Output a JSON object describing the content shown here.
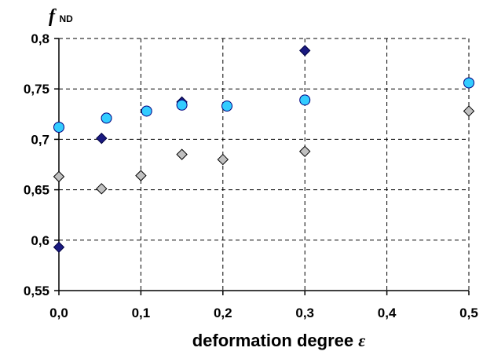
{
  "chart_data": {
    "type": "scatter",
    "title": "",
    "xlabel": {
      "text": "deformation degree ",
      "symbol": "ε"
    },
    "ylabel": {
      "text": "f",
      "subscript": "ND"
    },
    "xlim": [
      0,
      0.5
    ],
    "ylim": [
      0.55,
      0.8
    ],
    "x_ticks": [
      0,
      0.1,
      0.2,
      0.3,
      0.4,
      0.5
    ],
    "x_tick_labels": [
      "0,0",
      "0,1",
      "0,2",
      "0,3",
      "0,4",
      "0,5"
    ],
    "y_ticks": [
      0.55,
      0.6,
      0.65,
      0.7,
      0.75,
      0.8
    ],
    "y_tick_labels": [
      "0,55",
      "0,6",
      "0,65",
      "0,7",
      "0,75",
      "0,8"
    ],
    "grid": "dashed",
    "legend": "none",
    "series": [
      {
        "marker": "diamond",
        "color": "#1a1a80",
        "edge": "#000040",
        "points": [
          {
            "x": 0.0,
            "y": 0.593
          },
          {
            "x": 0.052,
            "y": 0.701
          },
          {
            "x": 0.15,
            "y": 0.737
          },
          {
            "x": 0.3,
            "y": 0.788
          }
        ]
      },
      {
        "marker": "circle",
        "color": "#33ccff",
        "edge": "#000080",
        "points": [
          {
            "x": 0.0,
            "y": 0.712
          },
          {
            "x": 0.058,
            "y": 0.721
          },
          {
            "x": 0.107,
            "y": 0.728
          },
          {
            "x": 0.15,
            "y": 0.734
          },
          {
            "x": 0.205,
            "y": 0.733
          },
          {
            "x": 0.3,
            "y": 0.739
          },
          {
            "x": 0.5,
            "y": 0.756
          }
        ]
      },
      {
        "marker": "diamond",
        "color": "#c0c0c0",
        "edge": "#000000",
        "points": [
          {
            "x": 0.0,
            "y": 0.663
          },
          {
            "x": 0.052,
            "y": 0.651
          },
          {
            "x": 0.1,
            "y": 0.664
          },
          {
            "x": 0.15,
            "y": 0.685
          },
          {
            "x": 0.2,
            "y": 0.68
          },
          {
            "x": 0.3,
            "y": 0.688
          },
          {
            "x": 0.5,
            "y": 0.728
          }
        ]
      }
    ]
  }
}
